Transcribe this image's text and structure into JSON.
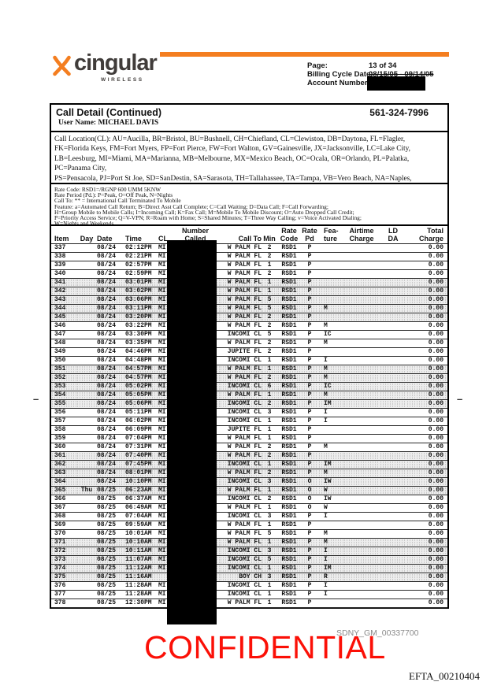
{
  "logo": {
    "brand": "cingular",
    "sub": "WIRELESS"
  },
  "header_info": {
    "page_label": "Page:",
    "page_value": "13 of 34",
    "cycle_label": "Billing Cycle Date:",
    "cycle_value": "08/15/05 - 09/14/05",
    "account_label": "Account Number:"
  },
  "call_detail": {
    "title": "Call Detail (Continued)",
    "phone": "561-324-7996",
    "user": "User Name: MICHAEL DAVIS"
  },
  "legends": {
    "location": "Call Location(CL):  AU=Aucilla, BR=Bristol, BU=Bushnell, CH=Chiefland, CL=Clewiston, DB=Daytona, FL=Flagler,\nFK=Florida Keys, FM=Fort Myers, FP=Fort Pierce, FW=Fort Walton, GV=Gainesville, JX=Jacksonville, LC=Lake City,\nLB=Leesburg, MI=Miami, MA=Marianna, MB=Melbourne, MX=Mexico Beach, OC=Ocala, OR=Orlando, PL=Palatka, PC=Panama City,\nPS=Pensacola, PJ=Port St Joe, SD=SanDestin, SA=Sarasota, TH=Tallahassee, TA=Tampa, VB=Vero Beach, NA=Naples,\nLK=Lakeland, TV=Thomasville, SB=Sebring",
    "rates": "Rate Code: RSD1=/RGNP 600 UMM 5KNW\nRate Period (Pd.): P=Peak, O=Off Peak, N=Nights\nCall To: ** = International Call Terminated To Mobile\nFeature: a=Automated Call Return; B=Direct Asst Call Complete; C=Call Waiting; D=Data Call; F=Call Forwarding;\nH=Group Mobile to Mobile Calls; I=Incoming Call; K=Fax Call; M=Mobile To Mobile Discount; O=Auto Dropped Call Credit;\nP=Priority Access Service; Q=V-VPN; R=Roam with Home; S=Shared Minutes; T=Three Way Calling; v=Voice Activated Dialing;\nW=Nights and Weekends"
  },
  "table": {
    "headers": [
      "Item",
      "Day",
      "Date",
      "Time",
      "CL",
      "Number\nCalled",
      "Call To",
      "Min",
      "Rate\nCode",
      "Rate\nPd",
      "Fea-\nture",
      "Airtime\nCharge",
      "LD\nDA",
      "Total\nCharge"
    ],
    "rows": [
      [
        "337",
        "",
        "08/24",
        "02:12PM",
        "MI",
        "W PALM FL",
        "2",
        "RSD1",
        "P",
        "",
        "0.00",
        0
      ],
      [
        "338",
        "",
        "08/24",
        "02:21PM",
        "MI",
        "W PALM FL",
        "2",
        "RSD1",
        "P",
        "",
        "0.00",
        0
      ],
      [
        "339",
        "",
        "08/24",
        "02:57PM",
        "MI",
        "W PALM FL",
        "1",
        "RSD1",
        "P",
        "",
        "0.00",
        0
      ],
      [
        "340",
        "",
        "08/24",
        "02:59PM",
        "MI",
        "W PALM FL",
        "2",
        "RSD1",
        "P",
        "",
        "0.00",
        0
      ],
      [
        "341",
        "",
        "08/24",
        "03:01PM",
        "MI",
        "W PALM FL",
        "1",
        "RSD1",
        "P",
        "",
        "0.00",
        1
      ],
      [
        "342",
        "",
        "08/24",
        "03:02PM",
        "MI",
        "W PALM FL",
        "1",
        "RSD1",
        "P",
        "",
        "0.00",
        1
      ],
      [
        "343",
        "",
        "08/24",
        "03:06PM",
        "MI",
        "W PALM FL",
        "5",
        "RSD1",
        "P",
        "",
        "0.00",
        1
      ],
      [
        "344",
        "",
        "08/24",
        "03:11PM",
        "MI",
        "W PALM FL",
        "5",
        "RSD1",
        "P",
        "M",
        "0.00",
        1
      ],
      [
        "345",
        "",
        "08/24",
        "03:20PM",
        "MI",
        "W PALM FL",
        "2",
        "RSD1",
        "P",
        "",
        "0.00",
        1
      ],
      [
        "346",
        "",
        "08/24",
        "03:22PM",
        "MI",
        "W PALM FL",
        "2",
        "RSD1",
        "P",
        "M",
        "0.00",
        0
      ],
      [
        "347",
        "",
        "08/24",
        "03:30PM",
        "MI",
        "INCOMI CL",
        "5",
        "RSD1",
        "P",
        "IC",
        "0.00",
        0
      ],
      [
        "348",
        "",
        "08/24",
        "03:35PM",
        "MI",
        "W PALM FL",
        "2",
        "RSD1",
        "P",
        "M",
        "0.00",
        0
      ],
      [
        "349",
        "",
        "08/24",
        "04:46PM",
        "MI",
        "JUPITE FL",
        "2",
        "RSD1",
        "P",
        "",
        "0.00",
        0
      ],
      [
        "350",
        "",
        "08/24",
        "04:48PM",
        "MI",
        "INCOMI CL",
        "1",
        "RSD1",
        "P",
        "I",
        "0.00",
        0
      ],
      [
        "351",
        "",
        "08/24",
        "04:57PM",
        "MI",
        "W PALM FL",
        "1",
        "RSD1",
        "P",
        "M",
        "0.00",
        1
      ],
      [
        "352",
        "",
        "08/24",
        "04:57PM",
        "MI",
        "W PALM FL",
        "2",
        "RSD1",
        "P",
        "M",
        "0.00",
        1
      ],
      [
        "353",
        "",
        "08/24",
        "05:02PM",
        "MI",
        "INCOMI CL",
        "6",
        "RSD1",
        "P",
        "IC",
        "0.00",
        1
      ],
      [
        "354",
        "",
        "08/24",
        "05:05PM",
        "MI",
        "W PALM FL",
        "1",
        "RSD1",
        "P",
        "M",
        "0.00",
        1
      ],
      [
        "355",
        "",
        "08/24",
        "05:06PM",
        "MI",
        "INCOMI CL",
        "2",
        "RSD1",
        "P",
        "IM",
        "0.00",
        1
      ],
      [
        "356",
        "",
        "08/24",
        "05:11PM",
        "MI",
        "INCOMI CL",
        "3",
        "RSD1",
        "P",
        "I",
        "0.00",
        0
      ],
      [
        "357",
        "",
        "08/24",
        "06:02PM",
        "MI",
        "INCOMI CL",
        "1",
        "RSD1",
        "P",
        "I",
        "0.00",
        0
      ],
      [
        "358",
        "",
        "08/24",
        "06:09PM",
        "MI",
        "JUPITE FL",
        "1",
        "RSD1",
        "P",
        "",
        "0.00",
        0
      ],
      [
        "359",
        "",
        "08/24",
        "07:04PM",
        "MI",
        "W PALM FL",
        "1",
        "RSD1",
        "P",
        "",
        "0.00",
        0
      ],
      [
        "360",
        "",
        "08/24",
        "07:31PM",
        "MI",
        "W PALM FL",
        "2",
        "RSD1",
        "P",
        "M",
        "0.00",
        0
      ],
      [
        "361",
        "",
        "08/24",
        "07:40PM",
        "MI",
        "W PALM FL",
        "2",
        "RSD1",
        "P",
        "",
        "0.00",
        1
      ],
      [
        "362",
        "",
        "08/24",
        "07:45PM",
        "MI",
        "INCOMI CL",
        "1",
        "RSD1",
        "P",
        "IM",
        "0.00",
        1
      ],
      [
        "363",
        "",
        "08/24",
        "08:01PM",
        "MI",
        "W PALM FL",
        "2",
        "RSD1",
        "P",
        "M",
        "0.00",
        1
      ],
      [
        "364",
        "",
        "08/24",
        "10:10PM",
        "MI",
        "INCOMI CL",
        "3",
        "RSD1",
        "O",
        "IW",
        "0.00",
        1
      ],
      [
        "365",
        "Thu",
        "08/25",
        "06:23AM",
        "MI",
        "W PALM FL",
        "1",
        "RSD1",
        "O",
        "W",
        "0.00",
        1
      ],
      [
        "366",
        "",
        "08/25",
        "06:37AM",
        "MI",
        "INCOMI CL",
        "2",
        "RSD1",
        "O",
        "IW",
        "0.00",
        0
      ],
      [
        "367",
        "",
        "08/25",
        "06:49AM",
        "MI",
        "W PALM FL",
        "1",
        "RSD1",
        "O",
        "W",
        "0.00",
        0
      ],
      [
        "368",
        "",
        "08/25",
        "07:04AM",
        "MI",
        "INCOMI CL",
        "3",
        "RSD1",
        "P",
        "I",
        "0.00",
        0
      ],
      [
        "369",
        "",
        "08/25",
        "09:59AM",
        "MI",
        "W PALM FL",
        "1",
        "RSD1",
        "P",
        "",
        "0.00",
        0
      ],
      [
        "370",
        "",
        "08/25",
        "10:01AM",
        "MI",
        "W PALM FL",
        "5",
        "RSD1",
        "P",
        "M",
        "0.00",
        0
      ],
      [
        "371",
        "",
        "08/25",
        "10:10AM",
        "MI",
        "W PALM FL",
        "1",
        "RSD1",
        "P",
        "M",
        "0.00",
        1
      ],
      [
        "372",
        "",
        "08/25",
        "10:11AM",
        "MI",
        "INCOMI CL",
        "3",
        "RSD1",
        "P",
        "I",
        "0.00",
        1
      ],
      [
        "373",
        "",
        "08/25",
        "11:07AM",
        "MI",
        "INCOMI CL",
        "5",
        "RSD1",
        "P",
        "I",
        "0.00",
        1
      ],
      [
        "374",
        "",
        "08/25",
        "11:12AM",
        "MI",
        "INCOMI CL",
        "1",
        "RSD1",
        "P",
        "IM",
        "0.00",
        1
      ],
      [
        "375",
        "",
        "08/25",
        "11:16AM",
        "",
        "BOY CH",
        "3",
        "RSD1",
        "P",
        "R",
        "0.00",
        1
      ],
      [
        "376",
        "",
        "08/25",
        "11:28AM",
        "MI",
        "INCOMI CL",
        "1",
        "RSD1",
        "P",
        "I",
        "0.00",
        0
      ],
      [
        "377",
        "",
        "08/25",
        "11:28AM",
        "MI",
        "INCOMI CL",
        "1",
        "RSD1",
        "P",
        "I",
        "0.00",
        0
      ],
      [
        "378",
        "",
        "08/25",
        "12:30PM",
        "MI",
        "W PALM FL",
        "1",
        "RSD1",
        "P",
        "",
        "0.00",
        0
      ]
    ]
  },
  "marks": {
    "left_dash": "–",
    "right_dash": "–"
  },
  "footer": {
    "confidential": "CONFIDENTIAL",
    "bates_gray": "SDNY_GM_00337700",
    "bates_black": "EFTA_00210404"
  },
  "colors": {
    "brand_orange": "#F47E20",
    "stamp_red": "#FB1007",
    "redaction_black": "#000000"
  }
}
